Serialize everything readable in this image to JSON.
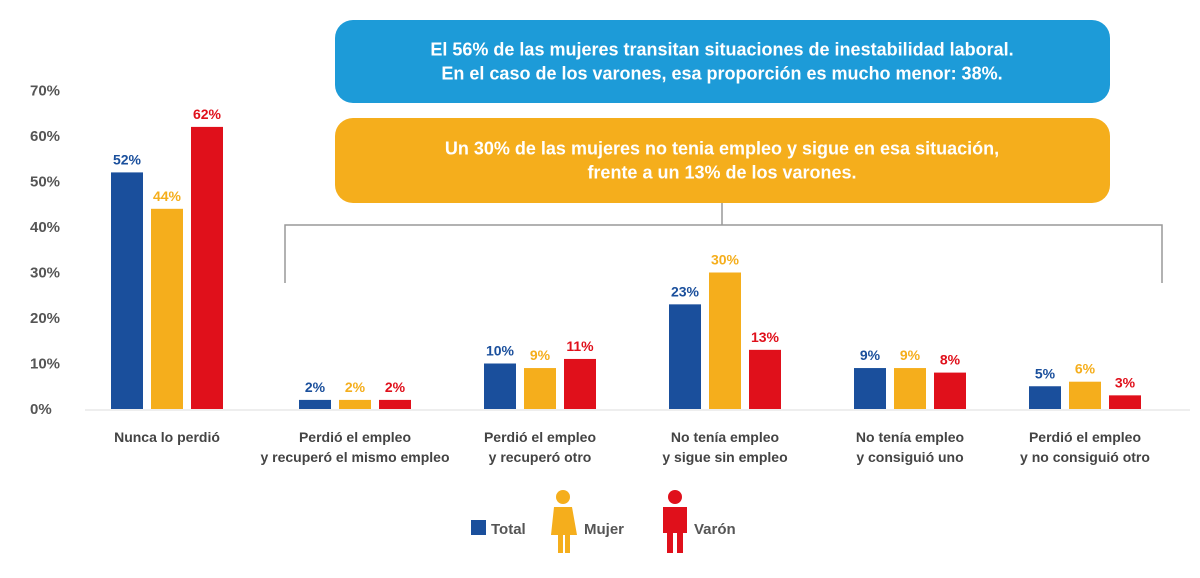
{
  "chart_data": {
    "type": "bar",
    "categories": [
      [
        "Nunca lo perdió"
      ],
      [
        "Perdió el empleo",
        "y recuperó el mismo empleo"
      ],
      [
        "Perdió el empleo",
        "y recuperó otro"
      ],
      [
        "No tenía empleo",
        "y sigue sin empleo"
      ],
      [
        "No tenía empleo",
        "y consiguió uno"
      ],
      [
        "Perdió el empleo",
        "y no consiguió otro"
      ]
    ],
    "series": [
      {
        "name": "Total",
        "values": [
          52,
          2,
          10,
          23,
          9,
          5
        ],
        "color": "#1a4f9c",
        "labels": [
          "52%",
          "2%",
          "10%",
          "23%",
          "9%",
          "5%"
        ]
      },
      {
        "name": "Mujer",
        "values": [
          44,
          2,
          9,
          30,
          9,
          6
        ],
        "color": "#f5ae1c",
        "labels": [
          "44%",
          "2%",
          "9%",
          "30%",
          "9%",
          "6%"
        ]
      },
      {
        "name": "Varón",
        "values": [
          62,
          2,
          11,
          13,
          8,
          3
        ],
        "color": "#e0101b",
        "labels": [
          "62%",
          "2%",
          "11%",
          "13%",
          "8%",
          "3%"
        ]
      }
    ],
    "yticks": [
      "0%",
      "10%",
      "20%",
      "30%",
      "40%",
      "50%",
      "60%",
      "70%"
    ],
    "ylim": [
      0,
      70
    ],
    "grid": false,
    "legend": "bottom-center",
    "legend_icons": [
      "square",
      "woman-icon",
      "man-icon"
    ],
    "annotations": [
      {
        "lines": [
          "El 56% de las mujeres transitan situaciones de inestabilidad laboral.",
          "En el caso de los varones, esa proporción es mucho menor: 38%."
        ],
        "color": "#1d9bd8"
      },
      {
        "lines": [
          "Un 30% de las mujeres no tenia empleo y sigue en esa situación,",
          "frente a un 13% de los varones."
        ],
        "color": "#f5ae1c"
      }
    ]
  }
}
